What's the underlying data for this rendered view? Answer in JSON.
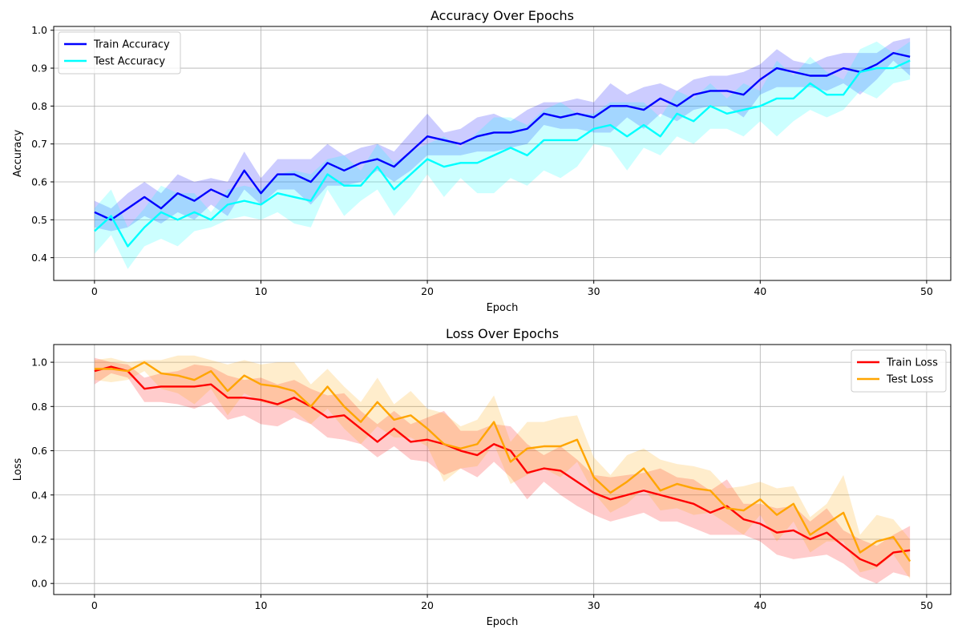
{
  "chart_data": [
    {
      "type": "line",
      "title": "Accuracy Over Epochs",
      "xlabel": "Epoch",
      "ylabel": "Accuracy",
      "xlim": [
        -2.45,
        51.45
      ],
      "ylim": [
        0.34,
        1.01
      ],
      "xticks": [
        0,
        10,
        20,
        30,
        40,
        50
      ],
      "yticks": [
        0.4,
        0.5,
        0.6,
        0.7,
        0.8,
        0.9,
        1.0
      ],
      "grid": true,
      "legend": "top-left",
      "x": [
        0,
        1,
        2,
        3,
        4,
        5,
        6,
        7,
        8,
        9,
        10,
        11,
        12,
        13,
        14,
        15,
        16,
        17,
        18,
        19,
        20,
        21,
        22,
        23,
        24,
        25,
        26,
        27,
        28,
        29,
        30,
        31,
        32,
        33,
        34,
        35,
        36,
        37,
        38,
        39,
        40,
        41,
        42,
        43,
        44,
        45,
        46,
        47,
        48,
        49
      ],
      "series": [
        {
          "name": "Train Accuracy",
          "color": "#0000ff",
          "values": [
            0.52,
            0.5,
            0.53,
            0.56,
            0.53,
            0.57,
            0.55,
            0.58,
            0.56,
            0.63,
            0.57,
            0.62,
            0.62,
            0.6,
            0.65,
            0.63,
            0.65,
            0.66,
            0.64,
            0.68,
            0.72,
            0.71,
            0.7,
            0.72,
            0.73,
            0.73,
            0.74,
            0.78,
            0.77,
            0.78,
            0.77,
            0.8,
            0.8,
            0.79,
            0.82,
            0.8,
            0.83,
            0.84,
            0.84,
            0.83,
            0.87,
            0.9,
            0.89,
            0.88,
            0.88,
            0.9,
            0.89,
            0.91,
            0.94,
            0.93
          ],
          "lower": [
            0.48,
            0.47,
            0.48,
            0.51,
            0.49,
            0.52,
            0.5,
            0.54,
            0.51,
            0.58,
            0.54,
            0.58,
            0.58,
            0.54,
            0.59,
            0.59,
            0.6,
            0.63,
            0.6,
            0.63,
            0.67,
            0.67,
            0.67,
            0.68,
            0.68,
            0.69,
            0.7,
            0.75,
            0.74,
            0.74,
            0.73,
            0.73,
            0.77,
            0.74,
            0.78,
            0.76,
            0.79,
            0.8,
            0.8,
            0.77,
            0.83,
            0.85,
            0.85,
            0.85,
            0.84,
            0.86,
            0.83,
            0.87,
            0.92,
            0.88
          ],
          "upper": [
            0.55,
            0.53,
            0.57,
            0.6,
            0.57,
            0.62,
            0.6,
            0.61,
            0.6,
            0.68,
            0.61,
            0.66,
            0.66,
            0.66,
            0.7,
            0.67,
            0.69,
            0.7,
            0.68,
            0.73,
            0.78,
            0.73,
            0.74,
            0.77,
            0.78,
            0.76,
            0.79,
            0.81,
            0.81,
            0.82,
            0.81,
            0.86,
            0.83,
            0.85,
            0.86,
            0.84,
            0.87,
            0.88,
            0.88,
            0.89,
            0.91,
            0.95,
            0.92,
            0.91,
            0.93,
            0.94,
            0.94,
            0.94,
            0.97,
            0.98
          ]
        },
        {
          "name": "Test Accuracy",
          "color": "#00ffff",
          "values": [
            0.47,
            0.51,
            0.43,
            0.48,
            0.52,
            0.5,
            0.52,
            0.5,
            0.54,
            0.55,
            0.54,
            0.57,
            0.56,
            0.55,
            0.62,
            0.59,
            0.59,
            0.64,
            0.58,
            0.62,
            0.66,
            0.64,
            0.65,
            0.65,
            0.67,
            0.69,
            0.67,
            0.71,
            0.71,
            0.71,
            0.74,
            0.75,
            0.72,
            0.75,
            0.72,
            0.78,
            0.76,
            0.8,
            0.78,
            0.79,
            0.8,
            0.82,
            0.82,
            0.86,
            0.83,
            0.83,
            0.89,
            0.9,
            0.9,
            0.92
          ],
          "lower": [
            0.41,
            0.46,
            0.37,
            0.43,
            0.45,
            0.43,
            0.47,
            0.48,
            0.5,
            0.51,
            0.5,
            0.52,
            0.49,
            0.48,
            0.58,
            0.51,
            0.55,
            0.58,
            0.51,
            0.56,
            0.62,
            0.56,
            0.61,
            0.57,
            0.57,
            0.61,
            0.59,
            0.63,
            0.61,
            0.64,
            0.7,
            0.69,
            0.63,
            0.69,
            0.67,
            0.72,
            0.7,
            0.74,
            0.74,
            0.72,
            0.76,
            0.72,
            0.76,
            0.79,
            0.77,
            0.79,
            0.84,
            0.82,
            0.86,
            0.87
          ],
          "upper": [
            0.53,
            0.58,
            0.48,
            0.53,
            0.59,
            0.57,
            0.57,
            0.52,
            0.58,
            0.59,
            0.58,
            0.62,
            0.63,
            0.62,
            0.66,
            0.67,
            0.63,
            0.7,
            0.65,
            0.68,
            0.7,
            0.72,
            0.69,
            0.73,
            0.77,
            0.77,
            0.75,
            0.79,
            0.81,
            0.78,
            0.78,
            0.81,
            0.81,
            0.81,
            0.77,
            0.84,
            0.82,
            0.86,
            0.82,
            0.86,
            0.84,
            0.92,
            0.88,
            0.93,
            0.89,
            0.87,
            0.95,
            0.97,
            0.94,
            0.97
          ]
        }
      ]
    },
    {
      "type": "line",
      "title": "Loss Over Epochs",
      "xlabel": "Epoch",
      "ylabel": "Loss",
      "xlim": [
        -2.45,
        51.45
      ],
      "ylim": [
        -0.05,
        1.08
      ],
      "xticks": [
        0,
        10,
        20,
        30,
        40,
        50
      ],
      "yticks": [
        0.0,
        0.2,
        0.4,
        0.6,
        0.8,
        1.0
      ],
      "grid": true,
      "legend": "top-right",
      "x": [
        0,
        1,
        2,
        3,
        4,
        5,
        6,
        7,
        8,
        9,
        10,
        11,
        12,
        13,
        14,
        15,
        16,
        17,
        18,
        19,
        20,
        21,
        22,
        23,
        24,
        25,
        26,
        27,
        28,
        29,
        30,
        31,
        32,
        33,
        34,
        35,
        36,
        37,
        38,
        39,
        40,
        41,
        42,
        43,
        44,
        45,
        46,
        47,
        48,
        49
      ],
      "series": [
        {
          "name": "Train Loss",
          "color": "#ff0000",
          "values": [
            0.96,
            0.98,
            0.96,
            0.88,
            0.89,
            0.89,
            0.89,
            0.9,
            0.84,
            0.84,
            0.83,
            0.81,
            0.84,
            0.8,
            0.75,
            0.76,
            0.7,
            0.64,
            0.7,
            0.64,
            0.65,
            0.63,
            0.6,
            0.58,
            0.63,
            0.6,
            0.5,
            0.52,
            0.51,
            0.46,
            0.41,
            0.38,
            0.4,
            0.42,
            0.4,
            0.38,
            0.36,
            0.32,
            0.35,
            0.29,
            0.27,
            0.23,
            0.24,
            0.2,
            0.23,
            0.17,
            0.11,
            0.08,
            0.14,
            0.15
          ],
          "lower": [
            0.9,
            0.95,
            0.93,
            0.82,
            0.82,
            0.81,
            0.79,
            0.82,
            0.74,
            0.76,
            0.72,
            0.71,
            0.75,
            0.72,
            0.66,
            0.65,
            0.63,
            0.57,
            0.62,
            0.56,
            0.55,
            0.49,
            0.52,
            0.48,
            0.55,
            0.48,
            0.38,
            0.46,
            0.4,
            0.35,
            0.31,
            0.28,
            0.3,
            0.32,
            0.28,
            0.28,
            0.25,
            0.22,
            0.22,
            0.22,
            0.19,
            0.13,
            0.11,
            0.12,
            0.13,
            0.09,
            0.03,
            0.0,
            0.05,
            0.03
          ],
          "upper": [
            1.02,
            1.0,
            0.99,
            0.93,
            0.95,
            0.96,
            0.99,
            0.98,
            0.94,
            0.92,
            0.93,
            0.9,
            0.92,
            0.88,
            0.85,
            0.86,
            0.78,
            0.72,
            0.78,
            0.72,
            0.75,
            0.78,
            0.69,
            0.69,
            0.72,
            0.71,
            0.63,
            0.58,
            0.62,
            0.56,
            0.49,
            0.48,
            0.49,
            0.5,
            0.52,
            0.48,
            0.47,
            0.42,
            0.47,
            0.36,
            0.36,
            0.34,
            0.35,
            0.28,
            0.34,
            0.24,
            0.2,
            0.17,
            0.22,
            0.26
          ]
        },
        {
          "name": "Test Loss",
          "color": "#ffa500",
          "values": [
            0.97,
            0.97,
            0.96,
            1.0,
            0.95,
            0.94,
            0.92,
            0.96,
            0.87,
            0.94,
            0.9,
            0.89,
            0.87,
            0.8,
            0.89,
            0.8,
            0.73,
            0.82,
            0.74,
            0.76,
            0.7,
            0.63,
            0.61,
            0.63,
            0.73,
            0.55,
            0.61,
            0.62,
            0.62,
            0.65,
            0.48,
            0.41,
            0.46,
            0.52,
            0.42,
            0.45,
            0.43,
            0.42,
            0.34,
            0.33,
            0.38,
            0.31,
            0.36,
            0.22,
            0.27,
            0.32,
            0.14,
            0.19,
            0.21,
            0.1
          ],
          "lower": [
            0.92,
            0.91,
            0.92,
            0.96,
            0.88,
            0.86,
            0.81,
            0.88,
            0.76,
            0.86,
            0.82,
            0.8,
            0.78,
            0.72,
            0.79,
            0.7,
            0.63,
            0.71,
            0.66,
            0.66,
            0.62,
            0.46,
            0.52,
            0.53,
            0.63,
            0.45,
            0.49,
            0.52,
            0.48,
            0.55,
            0.41,
            0.32,
            0.36,
            0.43,
            0.33,
            0.34,
            0.31,
            0.32,
            0.27,
            0.22,
            0.31,
            0.19,
            0.28,
            0.14,
            0.19,
            0.19,
            0.05,
            0.07,
            0.13,
            0.02
          ],
          "upper": [
            1.01,
            1.02,
            1.0,
            1.01,
            1.01,
            1.03,
            1.03,
            1.01,
            0.99,
            1.01,
            0.99,
            1.0,
            1.0,
            0.9,
            0.97,
            0.89,
            0.82,
            0.93,
            0.81,
            0.87,
            0.79,
            0.77,
            0.71,
            0.74,
            0.85,
            0.64,
            0.73,
            0.73,
            0.75,
            0.76,
            0.57,
            0.49,
            0.58,
            0.61,
            0.56,
            0.54,
            0.53,
            0.51,
            0.43,
            0.44,
            0.46,
            0.43,
            0.44,
            0.3,
            0.36,
            0.49,
            0.22,
            0.31,
            0.29,
            0.2
          ]
        }
      ]
    }
  ]
}
